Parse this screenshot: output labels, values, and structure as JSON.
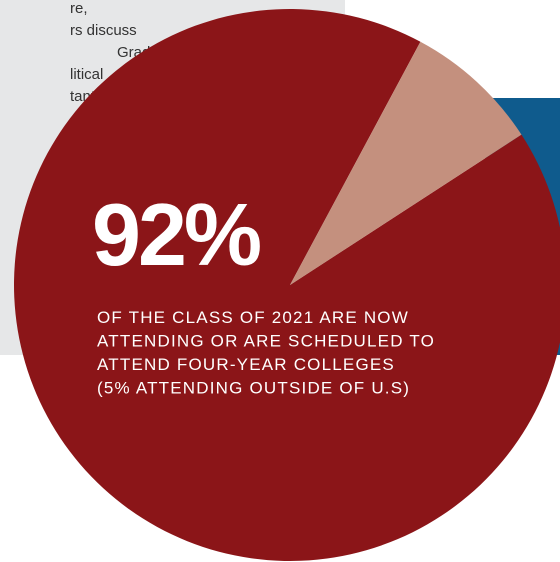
{
  "sidebar_text": [
    "re,",
    "rs discuss",
    "Graduates",
    "litical",
    "tant"
  ],
  "chart_data": {
    "type": "pie",
    "values": [
      92,
      8
    ],
    "value_labels": [
      "92%",
      null
    ],
    "colors": [
      "#8b1518",
      "#c4907e"
    ],
    "annotation": [
      "OF THE CLASS OF 2021 ARE NOW",
      "ATTENDING OR ARE SCHEDULED TO",
      "ATTEND FOUR-YEAR COLLEGES",
      "(5% ATTENDING OUTSIDE OF U.S)"
    ]
  }
}
